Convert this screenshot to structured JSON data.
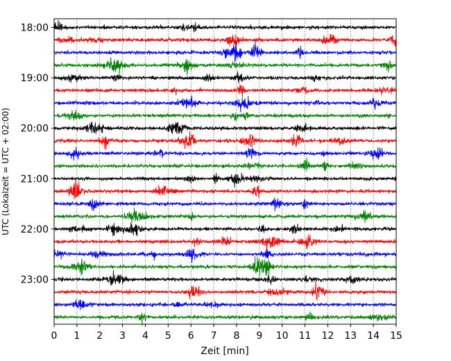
{
  "chart_data": {
    "type": "line",
    "title": "",
    "xlabel": "Zeit  [min]",
    "ylabel": "UTC (Lokalzeit = UTC + 02:00)",
    "xlim": [
      0,
      15
    ],
    "x_ticks": [
      "0",
      "1",
      "2",
      "3",
      "4",
      "5",
      "6",
      "7",
      "8",
      "9",
      "10",
      "11",
      "12",
      "13",
      "14",
      "15"
    ],
    "y_ticks": [
      "18:00",
      "19:00",
      "20:00",
      "21:00",
      "22:00",
      "23:00"
    ],
    "grid": "vertical dotted",
    "legend": "none",
    "trace_interval_minutes": 15,
    "colors": [
      "#000000",
      "#ff0000",
      "#0000ff",
      "#008000"
    ],
    "series": [
      {
        "start": "18:00",
        "color": "#000000"
      },
      {
        "start": "18:15",
        "color": "#ff0000"
      },
      {
        "start": "18:30",
        "color": "#0000ff"
      },
      {
        "start": "18:45",
        "color": "#008000"
      },
      {
        "start": "19:00",
        "color": "#000000"
      },
      {
        "start": "19:15",
        "color": "#ff0000"
      },
      {
        "start": "19:30",
        "color": "#0000ff"
      },
      {
        "start": "19:45",
        "color": "#008000"
      },
      {
        "start": "20:00",
        "color": "#000000"
      },
      {
        "start": "20:15",
        "color": "#ff0000"
      },
      {
        "start": "20:30",
        "color": "#0000ff"
      },
      {
        "start": "20:45",
        "color": "#008000"
      },
      {
        "start": "21:00",
        "color": "#000000"
      },
      {
        "start": "21:15",
        "color": "#ff0000"
      },
      {
        "start": "21:30",
        "color": "#0000ff"
      },
      {
        "start": "21:45",
        "color": "#008000"
      },
      {
        "start": "22:00",
        "color": "#000000"
      },
      {
        "start": "22:15",
        "color": "#ff0000"
      },
      {
        "start": "22:30",
        "color": "#0000ff"
      },
      {
        "start": "22:45",
        "color": "#008000"
      },
      {
        "start": "23:00",
        "color": "#000000"
      },
      {
        "start": "23:15",
        "color": "#ff0000"
      },
      {
        "start": "23:30",
        "color": "#0000ff"
      },
      {
        "start": "23:45",
        "color": "#008000"
      }
    ]
  }
}
